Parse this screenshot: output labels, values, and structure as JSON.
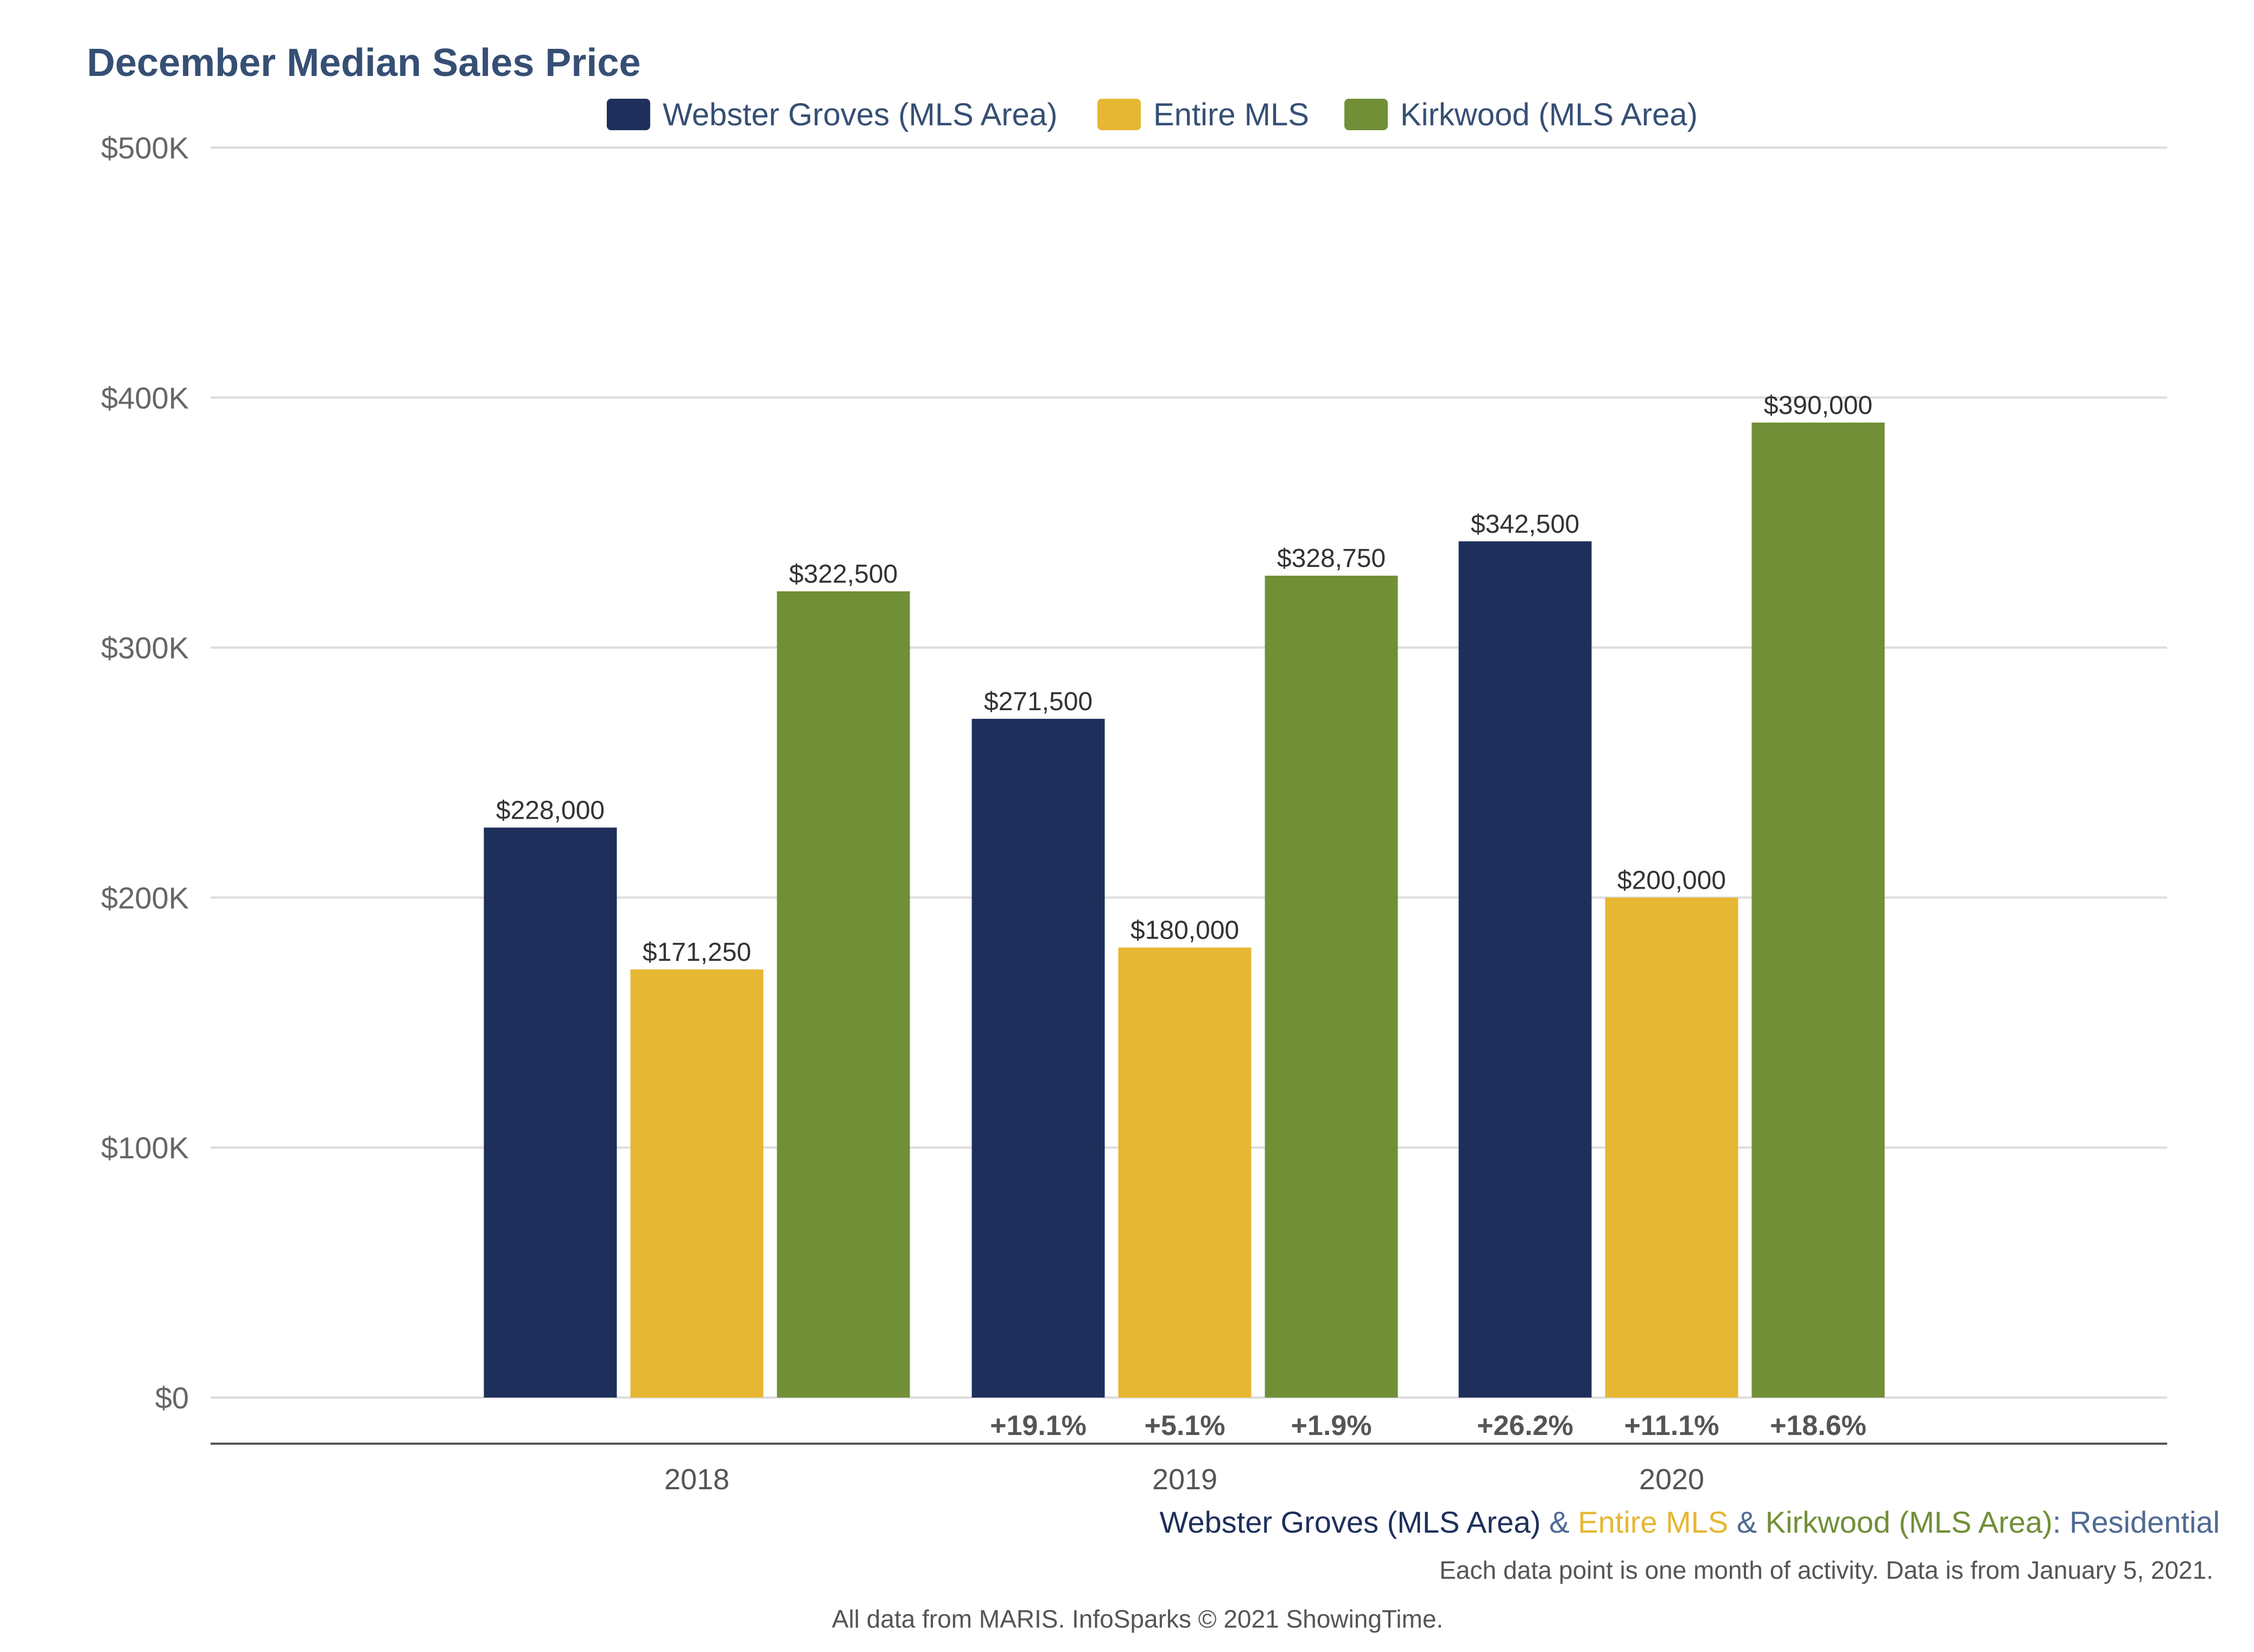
{
  "chart_data": {
    "type": "bar",
    "title": "December Median Sales Price",
    "categories": [
      "2018",
      "2019",
      "2020"
    ],
    "series": [
      {
        "name": "Webster Groves (MLS Area)",
        "color": "#1e2f5b",
        "values": [
          228000,
          271500,
          342500
        ],
        "value_labels": [
          "$228,000",
          "$271,500",
          "$342,500"
        ],
        "change_labels": [
          "",
          "+19.1%",
          "+26.2%"
        ]
      },
      {
        "name": "Entire MLS",
        "color": "#e6b733",
        "values": [
          171250,
          180000,
          200000
        ],
        "value_labels": [
          "$171,250",
          "$180,000",
          "$200,000"
        ],
        "change_labels": [
          "",
          "+5.1%",
          "+11.1%"
        ]
      },
      {
        "name": "Kirkwood (MLS Area)",
        "color": "#718f37",
        "values": [
          322500,
          328750,
          390000
        ],
        "value_labels": [
          "$322,500",
          "$328,750",
          "$390,000"
        ],
        "change_labels": [
          "",
          "+1.9%",
          "+18.6%"
        ]
      }
    ],
    "ylim": [
      0,
      500000
    ],
    "yticks": [
      0,
      100000,
      200000,
      300000,
      400000,
      500000
    ],
    "ytick_labels": [
      "$0",
      "$100K",
      "$200K",
      "$300K",
      "$400K",
      "$500K"
    ],
    "grid": true,
    "legend_position": "top-center"
  },
  "subtitle_parts": [
    {
      "text": "Webster Groves (MLS Area)",
      "color": "#1e2f5b"
    },
    {
      "text": " & ",
      "color": "#4f6a94"
    },
    {
      "text": "Entire MLS",
      "color": "#e6b733"
    },
    {
      "text": " & ",
      "color": "#4f6a94"
    },
    {
      "text": "Kirkwood (MLS Area)",
      "color": "#718f37"
    },
    {
      "text": ": Residential",
      "color": "#4f6a94"
    }
  ],
  "note": "Each data point is one month of activity. Data is from January 5, 2021.",
  "credit": "All data from MARIS. InfoSparks © 2021 ShowingTime.",
  "colors": {
    "title": "#364f74",
    "grid": "#dddddd",
    "axis": "#555555"
  }
}
